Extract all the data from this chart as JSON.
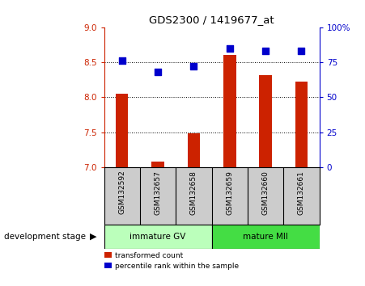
{
  "title": "GDS2300 / 1419677_at",
  "samples": [
    "GSM132592",
    "GSM132657",
    "GSM132658",
    "GSM132659",
    "GSM132660",
    "GSM132661"
  ],
  "bar_values": [
    8.05,
    7.08,
    7.48,
    8.6,
    8.32,
    8.22
  ],
  "percentile_values": [
    76,
    68,
    72,
    85,
    83,
    83
  ],
  "bar_bottom": 7.0,
  "ylim_left": [
    7.0,
    9.0
  ],
  "ylim_right": [
    0,
    100
  ],
  "yticks_left": [
    7.0,
    7.5,
    8.0,
    8.5,
    9.0
  ],
  "yticks_right": [
    0,
    25,
    50,
    75,
    100
  ],
  "yticklabels_right": [
    "0",
    "25",
    "50",
    "75",
    "100%"
  ],
  "bar_color": "#cc2200",
  "dot_color": "#0000cc",
  "grid_lines": [
    7.5,
    8.0,
    8.5
  ],
  "groups": [
    {
      "label": "immature GV",
      "indices": [
        0,
        1,
        2
      ],
      "color": "#bbffbb"
    },
    {
      "label": "mature MII",
      "indices": [
        3,
        4,
        5
      ],
      "color": "#44dd44"
    }
  ],
  "stage_label": "development stage",
  "legend_bar_label": "transformed count",
  "legend_dot_label": "percentile rank within the sample",
  "bg_color": "#ffffff",
  "plot_bg_color": "#ffffff",
  "tick_color_left": "#cc2200",
  "tick_color_right": "#0000cc",
  "sample_box_color": "#cccccc"
}
